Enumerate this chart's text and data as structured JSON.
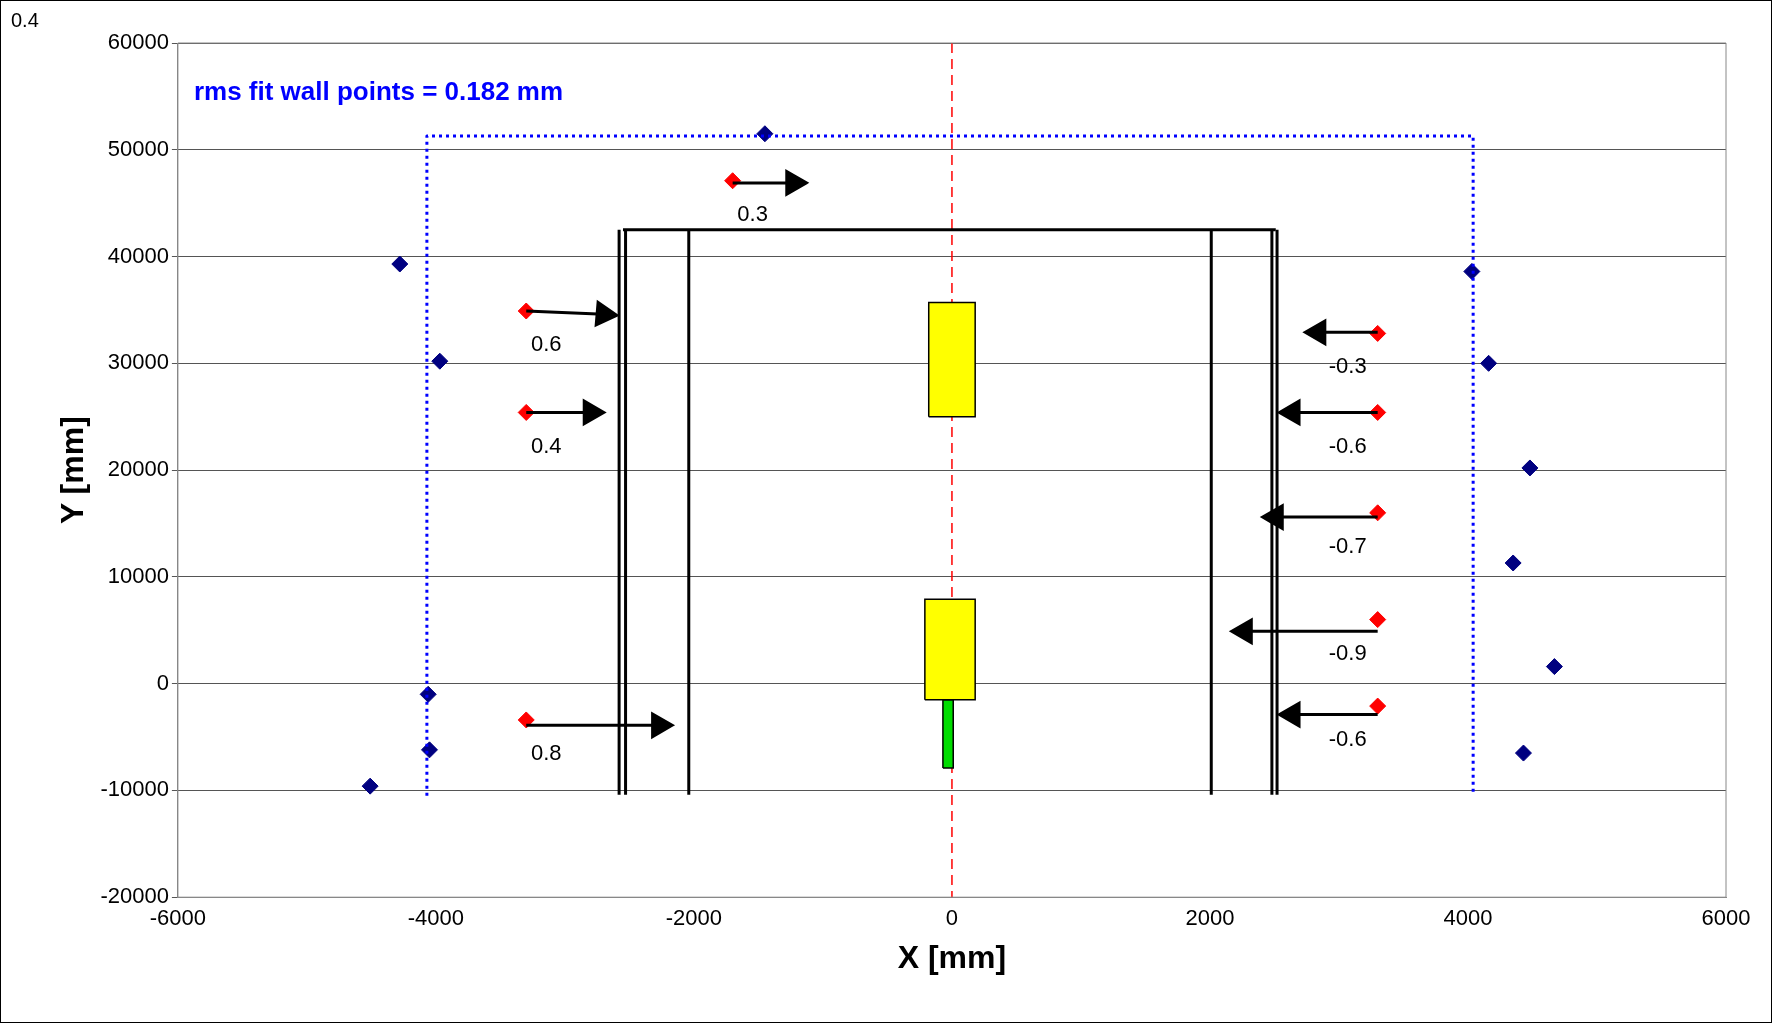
{
  "chart_data": {
    "type": "scatter",
    "xlabel": "X [mm]",
    "ylabel": "Y [mm]",
    "annotations": [
      "0.4",
      "rms fit wall points = 0.182 mm",
      {
        "text": "0.3",
        "x": -1700,
        "y": 47100
      },
      {
        "text": "0.6",
        "x": -3300,
        "y": 34900
      },
      {
        "text": "0.4",
        "x": -3300,
        "y": 25400
      },
      {
        "text": "0.8",
        "x": -3300,
        "y": -3400
      },
      {
        "text": "-0.3",
        "x": 3300,
        "y": 32800
      },
      {
        "text": "-0.6",
        "x": 3300,
        "y": 25400
      },
      {
        "text": "-0.7",
        "x": 3300,
        "y": 16000
      },
      {
        "text": "-0.9",
        "x": 3300,
        "y": 6000
      },
      {
        "text": "-0.6",
        "x": 3300,
        "y": -2100
      }
    ],
    "xlim": [
      -6000,
      6000
    ],
    "xticks": [
      -6000,
      -4000,
      -2000,
      0,
      2000,
      4000,
      6000
    ],
    "ylim": [
      -20000,
      60000
    ],
    "yticks": [
      -20000,
      -10000,
      0,
      10000,
      20000,
      30000,
      40000,
      50000,
      60000
    ],
    "grid": "y",
    "legend": false,
    "marker": "diamond",
    "ref_lines": [
      {
        "axis": "x",
        "value": 0,
        "color": "#ff0000",
        "line_style": "dashed"
      }
    ],
    "series": [
      {
        "type": "area",
        "color": "#ffff00",
        "marker": "none",
        "x": [
          -180,
          180,
          180,
          -180,
          -180
        ],
        "values": [
          25000,
          25000,
          35700,
          35700,
          25000
        ]
      },
      {
        "type": "area",
        "color": "#ffff00",
        "marker": "none",
        "x": [
          -210,
          180,
          180,
          -210,
          -210
        ],
        "values": [
          -1500,
          -1500,
          7900,
          7900,
          -1500
        ]
      },
      {
        "type": "area",
        "color": "#00dd00",
        "marker": "none",
        "x": [
          -70,
          10,
          10,
          -70,
          -70
        ],
        "values": [
          -7900,
          -7900,
          -1500,
          -1500,
          -7900
        ]
      },
      {
        "type": "line",
        "color": "#000000",
        "marker": "none",
        "x": [
          -2550,
          2510
        ],
        "values": [
          42500,
          42500
        ]
      },
      {
        "type": "line",
        "color": "#000000",
        "marker": "none",
        "x": [
          -2580,
          -2580
        ],
        "values": [
          -10400,
          42500
        ]
      },
      {
        "type": "line",
        "color": "#000000",
        "marker": "none",
        "x": [
          -2530,
          -2530
        ],
        "values": [
          -10400,
          42500
        ]
      },
      {
        "type": "line",
        "color": "#000000",
        "marker": "none",
        "x": [
          -2040,
          -2040
        ],
        "values": [
          -10400,
          42500
        ]
      },
      {
        "type": "line",
        "color": "#000000",
        "marker": "none",
        "x": [
          2010,
          2010
        ],
        "values": [
          -10400,
          42500
        ]
      },
      {
        "type": "line",
        "color": "#000000",
        "marker": "none",
        "x": [
          2480,
          2480
        ],
        "values": [
          -10400,
          42500
        ]
      },
      {
        "type": "line",
        "color": "#000000",
        "marker": "none",
        "x": [
          2520,
          2520
        ],
        "values": [
          -10400,
          42500
        ]
      },
      {
        "type": "line",
        "color": "#0000ff",
        "marker": "none",
        "line_style": "dotted",
        "x": [
          -4070,
          -4070,
          4040,
          4040
        ],
        "values": [
          -10500,
          51300,
          51300,
          -10500
        ]
      },
      {
        "type": "line",
        "color": "#000000",
        "marker": "triangle",
        "x": [
          -1700,
          -1230
        ],
        "values": [
          46900,
          46900
        ]
      },
      {
        "type": "line",
        "color": "#000000",
        "marker": "triangle",
        "x": [
          -3300,
          -2700
        ],
        "values": [
          34900,
          34600
        ]
      },
      {
        "type": "line",
        "color": "#000000",
        "marker": "triangle",
        "x": [
          -3300,
          -2800
        ],
        "values": [
          25400,
          25400
        ]
      },
      {
        "type": "line",
        "color": "#000000",
        "marker": "triangle",
        "x": [
          -3300,
          -2270
        ],
        "values": [
          -3900,
          -3900
        ]
      },
      {
        "type": "line",
        "color": "#000000",
        "marker": "triangle",
        "x": [
          3300,
          2840
        ],
        "values": [
          32900,
          32900
        ]
      },
      {
        "type": "line",
        "color": "#000000",
        "marker": "triangle",
        "x": [
          3300,
          2640
        ],
        "values": [
          25400,
          25400
        ]
      },
      {
        "type": "line",
        "color": "#000000",
        "marker": "triangle",
        "x": [
          3300,
          2510
        ],
        "values": [
          15600,
          15600
        ]
      },
      {
        "type": "line",
        "color": "#000000",
        "marker": "triangle",
        "x": [
          3300,
          2270
        ],
        "values": [
          4900,
          4900
        ]
      },
      {
        "type": "line",
        "color": "#000000",
        "marker": "triangle",
        "x": [
          3300,
          2640
        ],
        "values": [
          -2900,
          -2900
        ]
      },
      {
        "type": "scatter",
        "color": "#ff0000",
        "x": [
          -1700,
          -3300,
          -3300,
          -3300,
          3300,
          3300,
          3300,
          3300,
          3300
        ],
        "values": [
          47100,
          34900,
          25400,
          -3400,
          32800,
          25400,
          16000,
          6000,
          -2100
        ]
      },
      {
        "type": "scatter",
        "color": "#000080",
        "x": [
          -4280,
          -3970,
          -4060,
          -4050,
          -4510,
          -1450,
          4030,
          4160,
          4480,
          4350,
          4670,
          4430
        ],
        "values": [
          39300,
          30200,
          -1000,
          -6200,
          -9600,
          51500,
          38600,
          30000,
          20200,
          11300,
          1600,
          -6500
        ]
      }
    ]
  }
}
